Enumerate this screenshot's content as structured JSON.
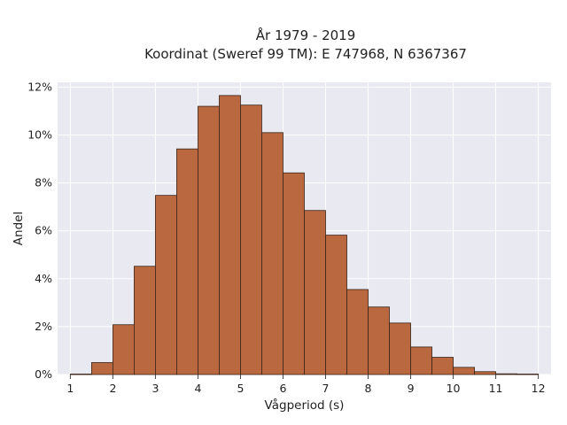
{
  "chart_data": {
    "type": "bar",
    "title": "År 1979 - 2019",
    "subtitle": "Koordinat (Sweref 99 TM): E 747968, N 6367367",
    "xlabel": "Vågperiod (s)",
    "ylabel": "Andel",
    "x_ticks": [
      1,
      2,
      3,
      4,
      5,
      6,
      7,
      8,
      9,
      10,
      11,
      12
    ],
    "y_ticks": [
      "0%",
      "2%",
      "4%",
      "6%",
      "8%",
      "10%",
      "12%"
    ],
    "xlim": [
      0.7,
      12.3
    ],
    "ylim": [
      0,
      12.2
    ],
    "bin_width": 0.5,
    "bins": [
      {
        "x0": 1.0,
        "value": 0.02
      },
      {
        "x0": 1.5,
        "value": 0.5
      },
      {
        "x0": 2.0,
        "value": 2.08
      },
      {
        "x0": 2.5,
        "value": 4.52
      },
      {
        "x0": 3.0,
        "value": 7.48
      },
      {
        "x0": 3.5,
        "value": 9.42
      },
      {
        "x0": 4.0,
        "value": 11.2
      },
      {
        "x0": 4.5,
        "value": 11.65
      },
      {
        "x0": 5.0,
        "value": 11.25
      },
      {
        "x0": 5.5,
        "value": 10.1
      },
      {
        "x0": 6.0,
        "value": 8.42
      },
      {
        "x0": 6.5,
        "value": 6.85
      },
      {
        "x0": 7.0,
        "value": 5.82
      },
      {
        "x0": 7.5,
        "value": 3.55
      },
      {
        "x0": 8.0,
        "value": 2.82
      },
      {
        "x0": 8.5,
        "value": 2.15
      },
      {
        "x0": 9.0,
        "value": 1.15
      },
      {
        "x0": 9.5,
        "value": 0.72
      },
      {
        "x0": 10.0,
        "value": 0.3
      },
      {
        "x0": 10.5,
        "value": 0.12
      },
      {
        "x0": 11.0,
        "value": 0.03
      },
      {
        "x0": 11.5,
        "value": 0.02
      }
    ],
    "grid": true,
    "colors": {
      "plot_background": "#e9e9f1",
      "grid": "#ffffff",
      "bar_fill": "#b9683f",
      "bar_edge": "#3a2418"
    }
  }
}
